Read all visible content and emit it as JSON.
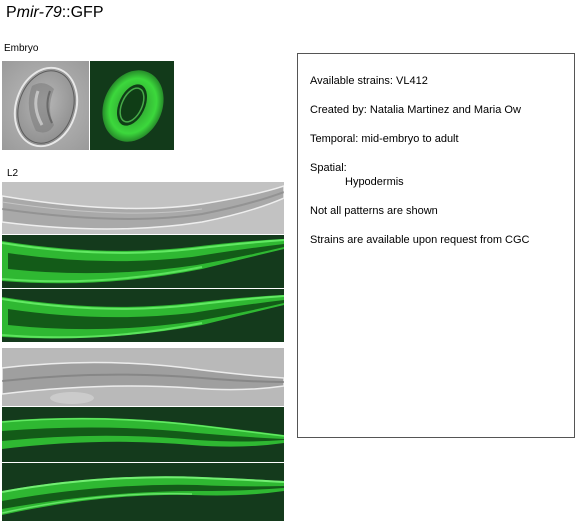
{
  "title": {
    "prefix": "P",
    "gene": "mir-79",
    "suffix": "::GFP"
  },
  "labels": {
    "embryo": "Embryo",
    "l2": "L2"
  },
  "images": {
    "embryo_dic": "embryo DIC micrograph",
    "embryo_gfp": "embryo GFP fluorescence micrograph",
    "l2_dic": "L2 larva DIC micrograph",
    "l2_gfp_1": "L2 larva GFP fluorescence micrograph",
    "l2_gfp_2": "L2 larva GFP fluorescence micrograph",
    "adult_dic": "worm DIC micrograph",
    "adult_gfp_1": "worm GFP fluorescence micrograph",
    "adult_gfp_2": "worm GFP fluorescence micrograph"
  },
  "info": {
    "strains": "Available strains: VL412",
    "created": "Created by: Natalia Martinez and Maria Ow",
    "temporal": "Temporal: mid-embryo to adult",
    "spatial_label": "Spatial:",
    "spatial_value": "Hypodermis",
    "note": "Not all patterns are shown",
    "availability": "Strains are available upon request from CGC"
  },
  "colors": {
    "gfp": "#3be03b",
    "gfp_bg": "#0c2a12",
    "dic": "#a8a8a8",
    "border": "#555555"
  }
}
